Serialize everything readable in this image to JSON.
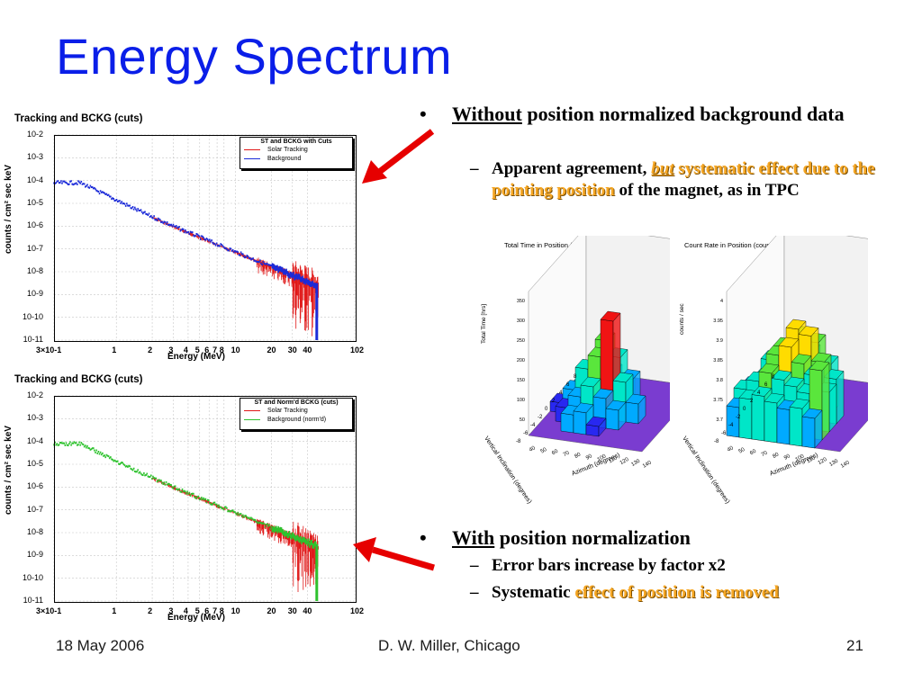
{
  "slide": {
    "title": "Energy Spectrum"
  },
  "plots": [
    {
      "title": "Tracking and BCKG (cuts)",
      "legend_title": "ST and BCKG with Cuts",
      "legend_items": [
        {
          "label": "Solar Tracking",
          "color": "#e01818"
        },
        {
          "label": "Background",
          "color": "#1c2bd8"
        }
      ],
      "ylabel": "counts / cm² sec keV",
      "xlabel": "Energy (MeV)",
      "yticks": [
        "10-2",
        "10-3",
        "10-4",
        "10-5",
        "10-6",
        "10-7",
        "10-8",
        "10-9",
        "10-10",
        "10-11"
      ],
      "xticks": [
        "3×10-1",
        "1",
        "2",
        "3",
        "4",
        "5",
        "6",
        "7",
        "8",
        "10",
        "20",
        "30",
        "40",
        "102"
      ]
    },
    {
      "title": "Tracking and BCKG (cuts)",
      "legend_title": "ST and Norm'd BCKG (cuts)",
      "legend_items": [
        {
          "label": "Solar Tracking",
          "color": "#e01818"
        },
        {
          "label": "Background (norm'd)",
          "color": "#2ec22e"
        }
      ],
      "ylabel": "counts / cm² sec keV",
      "xlabel": "Energy (MeV)",
      "yticks": [
        "10-2",
        "10-3",
        "10-4",
        "10-5",
        "10-6",
        "10-7",
        "10-8",
        "10-9",
        "10-10",
        "10-11"
      ],
      "xticks": [
        "3×10-1",
        "1",
        "2",
        "3",
        "4",
        "5",
        "6",
        "7",
        "8",
        "10",
        "20",
        "30",
        "40",
        "102"
      ]
    }
  ],
  "bullets": {
    "b1_underlined": "Without",
    "b1_rest": "position normalized background data",
    "b1_sub_start": "Apparent agreement,",
    "b1_sub_but": "but",
    "b1_sub_highlight": "systematic effect due to the pointing position",
    "b1_sub_end": "of the magnet, as in TPC",
    "b2_underlined": "With",
    "b2_rest": "position normalization",
    "b2_sub1": "Error bars increase by factor x2",
    "b2_sub2_start": "Systematic",
    "b2_sub2_highlight": "effect of position is removed"
  },
  "lego_plots": [
    {
      "title": "Total Time in Position (hrs)",
      "zlabel": "Total Time [hrs]",
      "zticks": [
        "350",
        "300",
        "250",
        "200",
        "150",
        "100",
        "50"
      ],
      "ylabel": "Vertical Inclination (degrees)",
      "xlabel": "Azimuth (degrees)",
      "xticks": [
        "40",
        "50",
        "60",
        "70",
        "80",
        "90",
        "100",
        "110",
        "120",
        "130",
        "140"
      ],
      "yticks": [
        "8",
        "6",
        "4",
        "2",
        "0",
        "-2",
        "-4",
        "-6",
        "-8"
      ]
    },
    {
      "title": "Count Rate in Position (counts / sec)",
      "zlabel": "counts / sec",
      "zticks": [
        "4",
        "3.95",
        "3.9",
        "3.85",
        "3.8",
        "3.75",
        "3.7"
      ],
      "ylabel": "Vertical Inclination (degrees)",
      "xlabel": "Azimuth (degrees)",
      "xticks": [
        "40",
        "50",
        "60",
        "70",
        "80",
        "90",
        "100",
        "110",
        "120",
        "130",
        "140"
      ],
      "yticks": [
        "8",
        "6",
        "4",
        "2",
        "0",
        "-2",
        "-4",
        "-6",
        "-8"
      ]
    }
  ],
  "footer": {
    "date": "18 May 2006",
    "author": "D. W. Miller, Chicago",
    "page": "21"
  },
  "colors": {
    "title": "#0a1ee8",
    "arrow": "#e60000",
    "highlight": "#f5a623"
  }
}
